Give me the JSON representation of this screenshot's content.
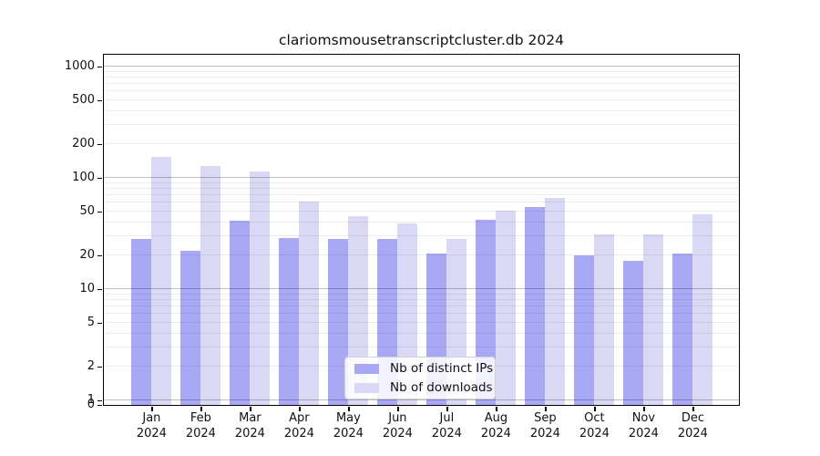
{
  "title": "clariomsmousetranscriptcluster.db 2024",
  "colors": {
    "ips_bar": "#a8a8f5",
    "downloads_bar": "#d9d9f6",
    "grid_major": "#00000040",
    "grid_minor": "#00000012",
    "axis": "#000000"
  },
  "chart_data": {
    "type": "bar",
    "title": "clariomsmousetranscriptcluster.db 2024",
    "categories": [
      "Jan",
      "Feb",
      "Mar",
      "Apr",
      "May",
      "Jun",
      "Jul",
      "Aug",
      "Sep",
      "Oct",
      "Nov",
      "Dec"
    ],
    "category_year": "2024",
    "series": [
      {
        "name": "Nb of distinct IPs",
        "color": "#a8a8f5",
        "values": [
          28,
          22,
          41,
          29,
          28,
          28,
          21,
          42,
          55,
          20,
          18,
          21
        ]
      },
      {
        "name": "Nb of downloads",
        "color": "#d9d9f6",
        "values": [
          155,
          128,
          115,
          61,
          45,
          39,
          28,
          51,
          66,
          31,
          31,
          47
        ]
      }
    ],
    "yscale": "log",
    "ylim": [
      0,
      1250
    ],
    "yticks": [
      0,
      1,
      2,
      5,
      10,
      20,
      50,
      100,
      200,
      500,
      1000
    ],
    "grid": true,
    "legend_position": "lower center"
  }
}
